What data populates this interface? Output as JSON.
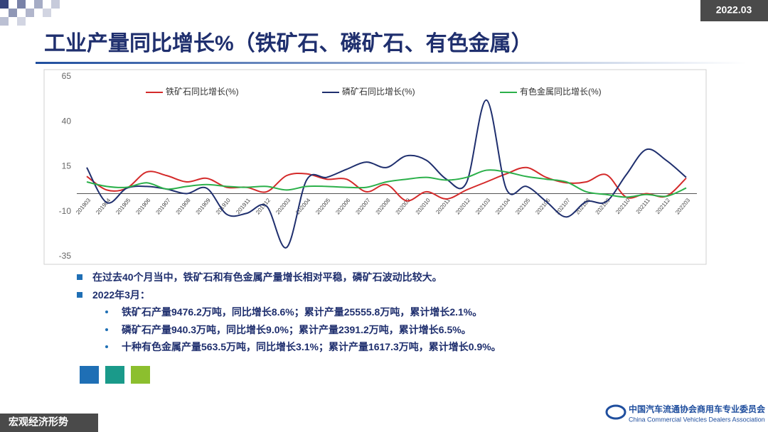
{
  "header": {
    "date": "2022.03",
    "title": "工业产量同比增长%（铁矿石、磷矿石、有色金属）"
  },
  "chart_data": {
    "type": "line",
    "categories": [
      "201903",
      "201904",
      "201905",
      "201906",
      "201907",
      "201908",
      "201909",
      "201910",
      "201911",
      "201912",
      "202003",
      "202004",
      "202005",
      "202006",
      "202007",
      "202008",
      "202009",
      "202010",
      "202011",
      "202012",
      "202103",
      "202104",
      "202105",
      "202106",
      "202107",
      "202108",
      "202109",
      "202110",
      "202111",
      "202112",
      "202203"
    ],
    "series": [
      {
        "name": "铁矿石同比增长(%)",
        "color": "#d42a2a",
        "values": [
          9.6,
          2,
          3,
          12,
          10,
          6.5,
          8.5,
          3.5,
          3.5,
          1,
          10,
          11,
          8,
          8,
          1,
          5,
          -4,
          1,
          -3,
          2,
          6.5,
          11,
          14.5,
          9,
          6,
          6.5,
          10.5,
          -2,
          0,
          -1.5,
          8.6
        ]
      },
      {
        "name": "磷矿石同比增长(%)",
        "color": "#1f2f6e",
        "values": [
          14.5,
          -5,
          3,
          4,
          2.5,
          0,
          3,
          -11.5,
          -11,
          -7,
          -30,
          7.5,
          9,
          13.5,
          17.5,
          14.5,
          21,
          18.5,
          8,
          6,
          52,
          2.5,
          4,
          -4.5,
          -13,
          -4.5,
          -4.5,
          10.5,
          24.5,
          18.5,
          9.0
        ]
      },
      {
        "name": "有色金属同比增长(%)",
        "color": "#2bb04a",
        "values": [
          6.5,
          4,
          3.5,
          6,
          2.5,
          4,
          5,
          4,
          3.5,
          4,
          2,
          4,
          4,
          3.5,
          3.5,
          6.5,
          8,
          9,
          7.5,
          9,
          13,
          12,
          9.5,
          8,
          6.5,
          1,
          -0.5,
          -2,
          -0.5,
          -1.5,
          3.1
        ]
      }
    ],
    "ylim": [
      -35,
      65
    ],
    "yticks": [
      -35,
      -10,
      15,
      40,
      65
    ],
    "grid": false,
    "legend": "top"
  },
  "notes": {
    "items": [
      "在过去40个月当中，铁矿石和有色金属产量增长相对平稳，磷矿石波动比较大。",
      "2022年3月："
    ],
    "subitems": [
      "铁矿石产量9476.2万吨，同比增长8.6%；累计产量25555.8万吨，累计增长2.1%。",
      "磷矿石产量940.3万吨，同比增长9.0%；累计产量2391.2万吨，累计增长6.5%。",
      "十种有色金属产量563.5万吨，同比增长3.1%；累计产量1617.3万吨，累计增长0.9%。"
    ]
  },
  "footer": {
    "section": "宏观经济形势",
    "org_cn": "中国汽车流通协会商用车专业委员会",
    "org_en": "China Commercial Vehicles Dealers Association"
  }
}
